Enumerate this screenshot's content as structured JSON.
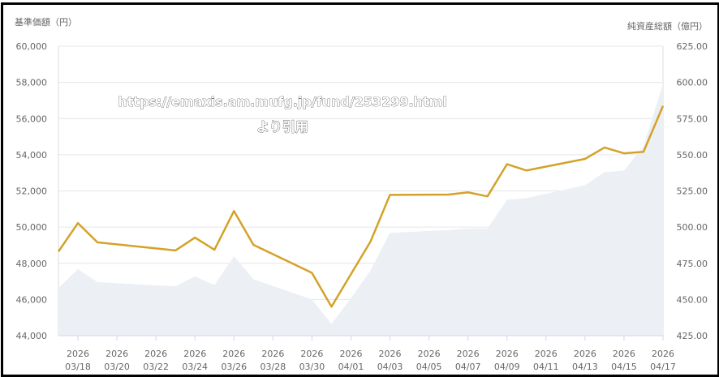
{
  "chart_data": {
    "type": "line",
    "left_axis_label": "基準価額（円）",
    "right_axis_label": "純資産総額（億円）",
    "watermark": [
      "https://emaxis.am.mufg.jp/fund/253299.html",
      "より引用"
    ],
    "y_left_range": [
      44000,
      60000
    ],
    "y_left_ticks": [
      "60,000",
      "58,000",
      "56,000",
      "54,000",
      "52,000",
      "50,000",
      "48,000",
      "46,000",
      "44,000"
    ],
    "y_right_range": [
      425,
      625
    ],
    "y_right_ticks": [
      "625.00",
      "600.00",
      "575.00",
      "550.00",
      "525.00",
      "500.00",
      "475.00",
      "450.00",
      "425.00"
    ],
    "x_range": [
      "2026-03-17",
      "2026-04-17"
    ],
    "x_ticks": [
      {
        "year": "2026",
        "md": "03/18",
        "date": "2026-03-18"
      },
      {
        "year": "2026",
        "md": "03/20",
        "date": "2026-03-20"
      },
      {
        "year": "2026",
        "md": "03/22",
        "date": "2026-03-22"
      },
      {
        "year": "2026",
        "md": "03/24",
        "date": "2026-03-24"
      },
      {
        "year": "2026",
        "md": "03/26",
        "date": "2026-03-26"
      },
      {
        "year": "2026",
        "md": "03/28",
        "date": "2026-03-28"
      },
      {
        "year": "2026",
        "md": "03/30",
        "date": "2026-03-30"
      },
      {
        "year": "2026",
        "md": "04/01",
        "date": "2026-04-01"
      },
      {
        "year": "2026",
        "md": "04/03",
        "date": "2026-04-03"
      },
      {
        "year": "2026",
        "md": "04/05",
        "date": "2026-04-05"
      },
      {
        "year": "2026",
        "md": "04/07",
        "date": "2026-04-07"
      },
      {
        "year": "2026",
        "md": "04/09",
        "date": "2026-04-09"
      },
      {
        "year": "2026",
        "md": "04/11",
        "date": "2026-04-11"
      },
      {
        "year": "2026",
        "md": "04/13",
        "date": "2026-04-13"
      },
      {
        "year": "2026",
        "md": "04/15",
        "date": "2026-04-15"
      },
      {
        "year": "2026",
        "md": "04/17",
        "date": "2026-04-17"
      }
    ],
    "grid": true,
    "dates": [
      "2026-03-17",
      "2026-03-18",
      "2026-03-19",
      "2026-03-23",
      "2026-03-24",
      "2026-03-25",
      "2026-03-26",
      "2026-03-27",
      "2026-03-30",
      "2026-03-31",
      "2026-04-01",
      "2026-04-02",
      "2026-04-03",
      "2026-04-06",
      "2026-04-07",
      "2026-04-08",
      "2026-04-09",
      "2026-04-10",
      "2026-04-13",
      "2026-04-14",
      "2026-04-15",
      "2026-04-16",
      "2026-04-17"
    ],
    "series": [
      {
        "type": "line",
        "axis": "left",
        "color": "#d4a228",
        "values": [
          48650,
          50220,
          49160,
          48710,
          49420,
          48750,
          50890,
          49020,
          47470,
          45600,
          47400,
          49200,
          51780,
          51800,
          51920,
          51700,
          53480,
          53130,
          53770,
          54400,
          54080,
          54160,
          56700
        ]
      },
      {
        "type": "area",
        "axis": "right",
        "color": "#eceff4",
        "values": [
          458,
          471,
          462,
          459,
          466,
          460,
          480,
          464,
          450,
          433,
          451,
          470,
          496,
          498,
          499,
          499,
          519,
          520,
          529,
          538,
          539,
          556,
          599
        ]
      }
    ]
  }
}
